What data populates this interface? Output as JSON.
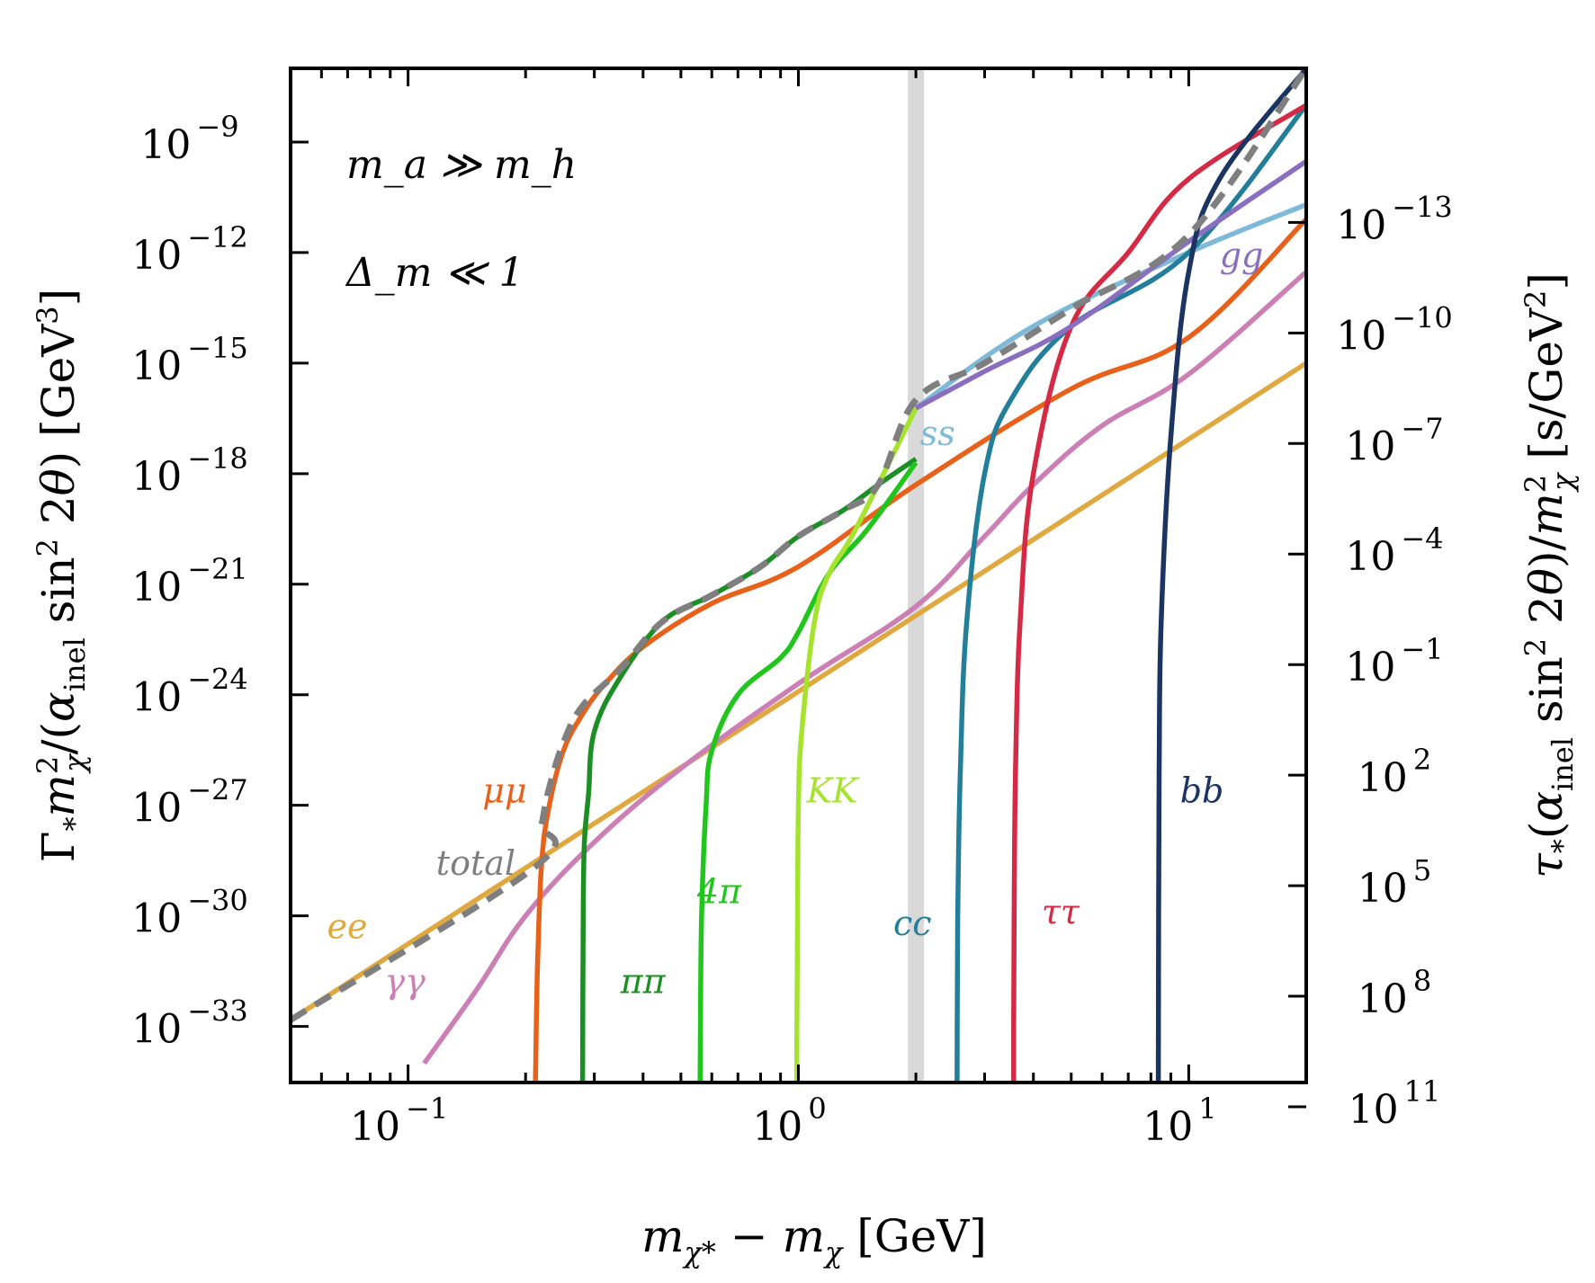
{
  "chart_data": {
    "type": "line",
    "xscale": "log",
    "yscale": "log",
    "xlim": [
      0.05,
      20
    ],
    "ylim": [
      3e-35,
      1e-07
    ],
    "xlabel": "m_{χ*} − m_χ [GeV]",
    "ylabel": "Γ_* m_χ^2 / (α_inel sin^2 2θ) [GeV^3]",
    "y2label": "τ_* (α_inel sin^2 2θ) / m_χ^2 [s/GeV^2]",
    "x_ticks": [
      {
        "value": 0.1,
        "base": "10",
        "exp": "−1"
      },
      {
        "value": 1,
        "base": "10",
        "exp": "0"
      },
      {
        "value": 10,
        "base": "10",
        "exp": "1"
      }
    ],
    "y_ticks": [
      {
        "value": 1e-09,
        "base": "10",
        "exp": "−9"
      },
      {
        "value": 1e-12,
        "base": "10",
        "exp": "−12"
      },
      {
        "value": 1e-15,
        "base": "10",
        "exp": "−15"
      },
      {
        "value": 1e-18,
        "base": "10",
        "exp": "−18"
      },
      {
        "value": 1e-21,
        "base": "10",
        "exp": "−21"
      },
      {
        "value": 1e-24,
        "base": "10",
        "exp": "−24"
      },
      {
        "value": 1e-27,
        "base": "10",
        "exp": "−27"
      },
      {
        "value": 1e-30,
        "base": "10",
        "exp": "−30"
      },
      {
        "value": 1e-33,
        "base": "10",
        "exp": "−33"
      }
    ],
    "y2_ticks": [
      {
        "value": 1e-13,
        "base": "10",
        "exp": "−13"
      },
      {
        "value": 1e-10,
        "base": "10",
        "exp": "−10"
      },
      {
        "value": 1e-07,
        "base": "10",
        "exp": "−7"
      },
      {
        "value": 0.0001,
        "base": "10",
        "exp": "−4"
      },
      {
        "value": 0.1,
        "base": "10",
        "exp": "−1"
      },
      {
        "value": 100.0,
        "base": "10",
        "exp": "2"
      },
      {
        "value": 100000.0,
        "base": "10",
        "exp": "5"
      },
      {
        "value": 100000000.0,
        "base": "10",
        "exp": "8"
      },
      {
        "value": 100000000000.0,
        "base": "10",
        "exp": "11"
      }
    ],
    "annotations": [
      "m_a ≫ m_h",
      "Δ_m ≪ 1"
    ],
    "vertical_band": {
      "x": 2.0,
      "color": "#d9d9d9"
    },
    "series": [
      {
        "name": "ee",
        "color": "#e0a93f",
        "dashed": false,
        "points": [
          [
            0.05,
            1.5e-33
          ],
          [
            20,
            1e-15
          ]
        ]
      },
      {
        "name": "γγ",
        "color": "#cc7fb5",
        "dashed": false,
        "points": [
          [
            0.11,
            1e-34
          ],
          [
            0.15,
            1e-32
          ],
          [
            0.2,
            1e-30
          ],
          [
            0.3,
            1e-28
          ],
          [
            0.5,
            1e-26
          ],
          [
            1.0,
            2e-24
          ],
          [
            2.0,
            2.5e-22
          ],
          [
            3.0,
            2e-20
          ],
          [
            4.0,
            5e-19
          ],
          [
            6.0,
            2e-17
          ],
          [
            10,
            5e-16
          ],
          [
            20,
            3e-13
          ]
        ]
      },
      {
        "name": "μμ",
        "color": "#e8611a",
        "dashed": false,
        "points": [
          [
            0.212,
            3e-35
          ],
          [
            0.213,
            1e-33
          ],
          [
            0.215,
            1e-31
          ],
          [
            0.22,
            3e-29
          ],
          [
            0.23,
            1e-27
          ],
          [
            0.25,
            3e-26
          ],
          [
            0.28,
            3e-25
          ],
          [
            0.32,
            2e-24
          ],
          [
            0.4,
            2e-23
          ],
          [
            0.6,
            3e-22
          ],
          [
            1.0,
            3e-21
          ],
          [
            2.0,
            5e-19
          ],
          [
            5.0,
            2e-16
          ],
          [
            10,
            5e-15
          ],
          [
            20,
            8e-12
          ]
        ]
      },
      {
        "name": "ππ",
        "color": "#1b8f23",
        "dashed": false,
        "points": [
          [
            0.28,
            3e-35
          ],
          [
            0.281,
            1e-30
          ],
          [
            0.283,
            1e-28
          ],
          [
            0.29,
            2e-27
          ],
          [
            0.3,
            1e-25
          ],
          [
            0.35,
            3e-24
          ],
          [
            0.45,
            1e-22
          ],
          [
            0.6,
            5e-22
          ],
          [
            0.8,
            3e-21
          ],
          [
            1.0,
            2e-20
          ],
          [
            1.3,
            1e-19
          ],
          [
            1.6,
            5e-19
          ],
          [
            2.0,
            2.5e-18
          ]
        ]
      },
      {
        "name": "4π",
        "color": "#21c61d",
        "dashed": false,
        "points": [
          [
            0.56,
            3e-35
          ],
          [
            0.561,
            1e-33
          ],
          [
            0.565,
            1e-30
          ],
          [
            0.58,
            1e-27
          ],
          [
            0.6,
            3e-26
          ],
          [
            0.7,
            1e-24
          ],
          [
            0.9,
            1e-23
          ],
          [
            1.0,
            5e-23
          ],
          [
            1.2,
            2e-21
          ],
          [
            1.5,
            3e-20
          ],
          [
            2.0,
            2e-18
          ]
        ]
      },
      {
        "name": "KK",
        "color": "#a6e32e",
        "dashed": false,
        "points": [
          [
            0.99,
            3e-35
          ],
          [
            0.991,
            1e-33
          ],
          [
            0.995,
            1e-30
          ],
          [
            1.0,
            1e-27
          ],
          [
            1.02,
            1e-25
          ],
          [
            1.1,
            1e-22
          ],
          [
            1.2,
            2e-21
          ],
          [
            1.4,
            3e-20
          ],
          [
            2.0,
            6e-17
          ]
        ]
      },
      {
        "name": "ss",
        "color": "#7fb9d8",
        "dashed": false,
        "points": [
          [
            2.0,
            6e-17
          ],
          [
            4.0,
            1e-14
          ],
          [
            10,
            1e-12
          ],
          [
            20,
            2e-11
          ]
        ]
      },
      {
        "name": "cc",
        "color": "#237f99",
        "dashed": false,
        "points": [
          [
            2.55,
            3e-35
          ],
          [
            2.551,
            1e-33
          ],
          [
            2.56,
            1e-30
          ],
          [
            2.6,
            1e-26
          ],
          [
            2.7,
            1e-22
          ],
          [
            3.0,
            1e-18
          ],
          [
            3.5,
            1e-16
          ],
          [
            5.0,
            1e-14
          ],
          [
            10,
            1e-12
          ],
          [
            20,
            1e-08
          ]
        ]
      },
      {
        "name": "ττ",
        "color": "#d42a45",
        "dashed": false,
        "points": [
          [
            3.56,
            3e-35
          ],
          [
            3.561,
            1e-33
          ],
          [
            3.57,
            1e-30
          ],
          [
            3.6,
            1e-26
          ],
          [
            3.7,
            1e-22
          ],
          [
            4.0,
            1e-18
          ],
          [
            5.0,
            1e-14
          ],
          [
            7.0,
            1e-12
          ],
          [
            10,
            1e-10
          ],
          [
            20,
            1e-08
          ]
        ]
      },
      {
        "name": "gg",
        "color": "#8a6ebf",
        "dashed": false,
        "points": [
          [
            2.0,
            6e-17
          ],
          [
            3.0,
            6e-16
          ],
          [
            5.0,
            1e-14
          ],
          [
            10,
            2e-12
          ],
          [
            20,
            3e-10
          ]
        ]
      },
      {
        "name": "bb",
        "color": "#1c3461",
        "dashed": false,
        "points": [
          [
            8.36,
            3e-35
          ],
          [
            8.361,
            1e-33
          ],
          [
            8.37,
            1e-30
          ],
          [
            8.4,
            1e-26
          ],
          [
            8.5,
            1e-22
          ],
          [
            9.0,
            1e-17
          ],
          [
            10,
            3e-13
          ],
          [
            12,
            1e-10
          ],
          [
            20,
            1e-07
          ]
        ]
      },
      {
        "name": "total",
        "color": "#7f7f7f",
        "dashed": true,
        "points": [
          [
            0.05,
            1.5e-33
          ],
          [
            0.21,
            2e-29
          ],
          [
            0.22,
            3e-28
          ],
          [
            0.23,
            3e-27
          ],
          [
            0.25,
            5e-26
          ],
          [
            0.28,
            5e-25
          ],
          [
            0.35,
            5e-24
          ],
          [
            0.45,
            1e-22
          ],
          [
            0.6,
            5e-22
          ],
          [
            0.8,
            3e-21
          ],
          [
            1.0,
            2e-20
          ],
          [
            1.3,
            1e-19
          ],
          [
            1.6,
            5e-19
          ],
          [
            2.0,
            1e-16
          ],
          [
            3.0,
            1e-15
          ],
          [
            5.0,
            3e-14
          ],
          [
            10,
            3e-12
          ],
          [
            20,
            1e-07
          ]
        ]
      }
    ]
  }
}
